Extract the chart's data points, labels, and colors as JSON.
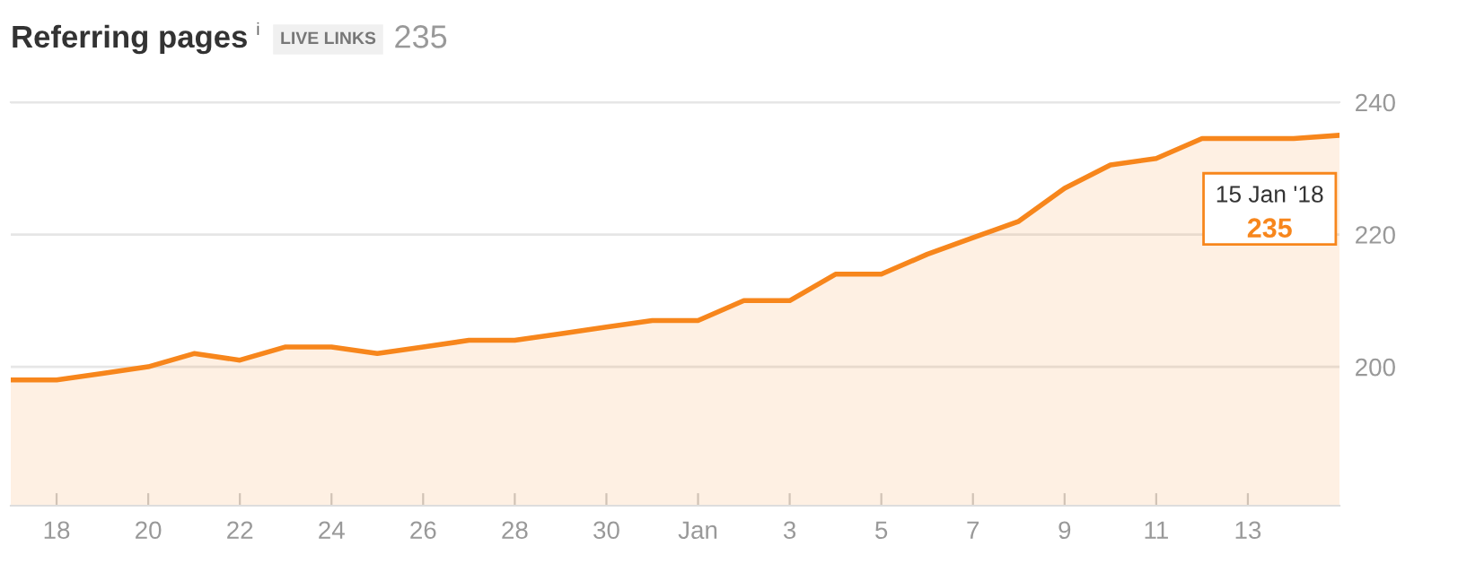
{
  "chart_data": {
    "type": "area",
    "title": "Referring pages",
    "subtitle": "LIVE LINKS",
    "annotations": [
      "i",
      "235",
      {
        "text": "15 Jan '18\n235",
        "x": "2018-01-15",
        "y": 235
      }
    ],
    "x": [
      "2017-12-17",
      "2017-12-18",
      "2017-12-19",
      "2017-12-20",
      "2017-12-21",
      "2017-12-22",
      "2017-12-23",
      "2017-12-24",
      "2017-12-25",
      "2017-12-26",
      "2017-12-27",
      "2017-12-28",
      "2017-12-29",
      "2017-12-30",
      "2017-12-31",
      "2018-01-01",
      "2018-01-02",
      "2018-01-03",
      "2018-01-04",
      "2018-01-05",
      "2018-01-06",
      "2018-01-07",
      "2018-01-08",
      "2018-01-09",
      "2018-01-10",
      "2018-01-11",
      "2018-01-12",
      "2018-01-13",
      "2018-01-14",
      "2018-01-15"
    ],
    "series": [
      {
        "color": "#f7861c",
        "values": [
          198,
          198,
          199,
          200,
          202,
          201,
          203,
          203,
          202,
          203,
          204,
          204,
          205,
          206,
          207,
          207,
          210,
          210,
          214,
          214,
          217,
          219.5,
          222,
          227,
          230.5,
          231.5,
          234.5,
          234.5,
          234.5,
          235
        ]
      }
    ],
    "xlim": [
      "2017-12-17",
      "2018-01-15"
    ],
    "xticks": [
      {
        "value": "2017-12-18",
        "label": "18"
      },
      {
        "value": "2017-12-20",
        "label": "20"
      },
      {
        "value": "2017-12-22",
        "label": "22"
      },
      {
        "value": "2017-12-24",
        "label": "24"
      },
      {
        "value": "2017-12-26",
        "label": "26"
      },
      {
        "value": "2017-12-28",
        "label": "28"
      },
      {
        "value": "2017-12-30",
        "label": "30"
      },
      {
        "value": "2018-01-01",
        "label": "Jan"
      },
      {
        "value": "2018-01-03",
        "label": "3"
      },
      {
        "value": "2018-01-05",
        "label": "5"
      },
      {
        "value": "2018-01-07",
        "label": "7"
      },
      {
        "value": "2018-01-09",
        "label": "9"
      },
      {
        "value": "2018-01-11",
        "label": "11"
      },
      {
        "value": "2018-01-13",
        "label": "13"
      }
    ],
    "ylim": [
      179,
      240
    ],
    "yticks": [
      200,
      220,
      240
    ],
    "grid": "y"
  }
}
